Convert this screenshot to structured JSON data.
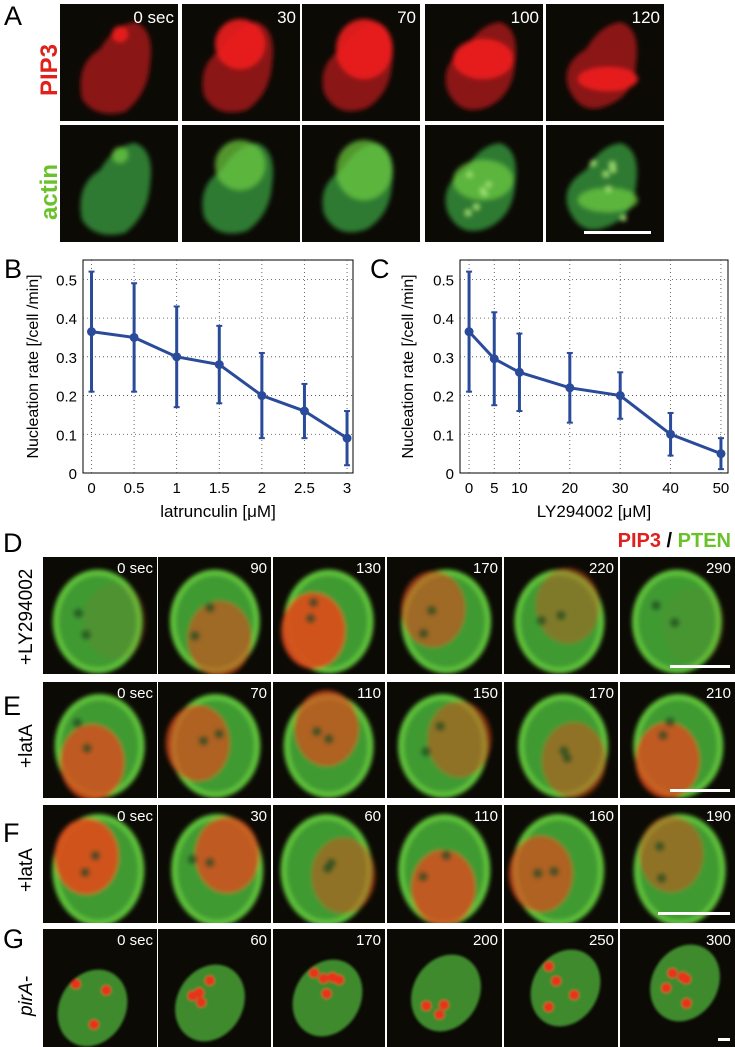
{
  "panel_a": {
    "label": "A",
    "rows": [
      {
        "label": "PIP3",
        "color": "#e0201c",
        "channel": "red"
      },
      {
        "label": "actin",
        "color": "#6ac22a",
        "channel": "green"
      }
    ],
    "timepoints": [
      "0 sec",
      "30",
      "70",
      "100",
      "120"
    ]
  },
  "chart_data": [
    {
      "panel_label": "B",
      "type": "line",
      "x": [
        0,
        0.5,
        1,
        1.5,
        2,
        2.5,
        3
      ],
      "values": [
        0.365,
        0.35,
        0.3,
        0.28,
        0.2,
        0.16,
        0.09
      ],
      "error_low": [
        0.21,
        0.21,
        0.17,
        0.18,
        0.09,
        0.09,
        0.02
      ],
      "error_high": [
        0.52,
        0.49,
        0.43,
        0.38,
        0.31,
        0.23,
        0.16
      ],
      "xticks": [
        "0",
        "0.5",
        "1",
        "1.5",
        "2",
        "2.5",
        "3"
      ],
      "yticks": [
        "0",
        "0.1",
        "0.2",
        "0.3",
        "0.4",
        "0.5"
      ],
      "xlabel": "latrunculin [μM]",
      "ylabel": "Nucleation rate [/cell /min]",
      "xlim": [
        -0.1,
        3.07
      ],
      "ylim": [
        0,
        0.55
      ],
      "grid": true,
      "color": "#2a4a9a"
    },
    {
      "panel_label": "C",
      "type": "line",
      "x": [
        0,
        5,
        10,
        20,
        30,
        40,
        50
      ],
      "values": [
        0.365,
        0.295,
        0.26,
        0.22,
        0.2,
        0.1,
        0.05
      ],
      "error_low": [
        0.21,
        0.175,
        0.16,
        0.13,
        0.14,
        0.045,
        0.01
      ],
      "error_high": [
        0.52,
        0.415,
        0.36,
        0.31,
        0.26,
        0.155,
        0.09
      ],
      "xticks": [
        "0",
        "5",
        "10",
        "20",
        "30",
        "40",
        "50"
      ],
      "yticks": [
        "0",
        "0.1",
        "0.2",
        "0.3",
        "0.4",
        "0.5"
      ],
      "xlabel": "LY294002 [μM]",
      "ylabel": "Nucleation rate [/cell /min]",
      "xlim": [
        -1.8,
        51.4
      ],
      "ylim": [
        0,
        0.55
      ],
      "grid": true,
      "color": "#2a4a9a"
    }
  ],
  "legend": {
    "pip3": "PIP3",
    "sep": "/",
    "pten": "PTEN",
    "pip3_color": "#e0201c",
    "pten_color": "#6ac22a"
  },
  "rows": [
    {
      "label": "D",
      "side": "+LY294002",
      "italic": false,
      "timepoints": [
        "0 sec",
        "90",
        "130",
        "170",
        "220",
        "290"
      ]
    },
    {
      "label": "E",
      "side": "+latA",
      "italic": false,
      "timepoints": [
        "0 sec",
        "70",
        "110",
        "150",
        "170",
        "210"
      ]
    },
    {
      "label": "F",
      "side": "+latA",
      "italic": false,
      "timepoints": [
        "0 sec",
        "30",
        "60",
        "110",
        "160",
        "190"
      ]
    },
    {
      "label": "G",
      "side": "pirA-",
      "italic": true,
      "timepoints": [
        "0 sec",
        "60",
        "170",
        "200",
        "250",
        "300"
      ]
    }
  ]
}
